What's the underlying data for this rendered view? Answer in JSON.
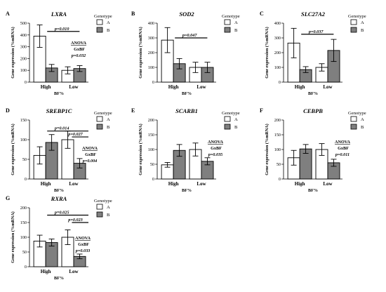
{
  "chart_data": [
    {
      "panel": "A",
      "type": "bar",
      "title": "LXRA",
      "ylabel": "Gene expression (%mRNA)",
      "xlabel": "BF%",
      "ylim": [
        0,
        500
      ],
      "yticks": [
        0,
        100,
        200,
        300,
        400,
        500
      ],
      "categories": [
        "High",
        "Low"
      ],
      "legend_title": "Genotype",
      "series": [
        {
          "name": "A",
          "values": [
            390,
            100
          ],
          "errors": [
            95,
            30
          ]
        },
        {
          "name": "B",
          "values": [
            120,
            115
          ],
          "errors": [
            30,
            25
          ]
        }
      ],
      "annotations": [
        {
          "text": "p=0.010",
          "kind": "sig-line"
        },
        {
          "text": "ANOVA",
          "kind": "stat"
        },
        {
          "text": "GxBF",
          "kind": "stat"
        },
        {
          "text": "p=0.032",
          "kind": "stat"
        }
      ]
    },
    {
      "panel": "B",
      "type": "bar",
      "title": "SOD2",
      "ylabel": "Gene expression (%mRNA)",
      "xlabel": "BF%",
      "ylim": [
        0,
        400
      ],
      "yticks": [
        0,
        100,
        200,
        300,
        400
      ],
      "categories": [
        "High",
        "Low"
      ],
      "legend_title": "Genotype",
      "series": [
        {
          "name": "A",
          "values": [
            285,
            100
          ],
          "errors": [
            85,
            35
          ]
        },
        {
          "name": "B",
          "values": [
            125,
            100
          ],
          "errors": [
            35,
            35
          ]
        }
      ],
      "annotations": [
        {
          "text": "p=0.047",
          "kind": "sig-line"
        }
      ]
    },
    {
      "panel": "C",
      "type": "bar",
      "title": "SLC27A2",
      "ylabel": "Gene expression (%mRNA)",
      "xlabel": "BF%",
      "ylim": [
        0,
        400
      ],
      "yticks": [
        0,
        100,
        200,
        300,
        400
      ],
      "categories": [
        "High",
        "Low"
      ],
      "legend_title": "Genotype",
      "series": [
        {
          "name": "A",
          "values": [
            265,
            100
          ],
          "errors": [
            100,
            25
          ]
        },
        {
          "name": "B",
          "values": [
            85,
            215
          ],
          "errors": [
            20,
            75
          ]
        }
      ],
      "annotations": [
        {
          "text": "p=0.037",
          "kind": "sig-line"
        }
      ]
    },
    {
      "panel": "D",
      "type": "bar",
      "title": "SREBP1C",
      "ylabel": "Gene expression (%mRNA)",
      "xlabel": "BF%",
      "ylim": [
        0,
        150
      ],
      "yticks": [
        0,
        50,
        100,
        150
      ],
      "categories": [
        "High",
        "Low"
      ],
      "legend_title": "Genotype",
      "series": [
        {
          "name": "A",
          "values": [
            60,
            100
          ],
          "errors": [
            22,
            22
          ]
        },
        {
          "name": "B",
          "values": [
            93,
            40
          ],
          "errors": [
            20,
            12
          ]
        }
      ],
      "annotations": [
        {
          "text": "p=0.014",
          "kind": "sig-line"
        },
        {
          "text": "p=0.027",
          "kind": "sig-line"
        },
        {
          "text": "ANOVA",
          "kind": "stat"
        },
        {
          "text": "GxBF",
          "kind": "stat"
        },
        {
          "text": "p=0.004",
          "kind": "stat"
        }
      ]
    },
    {
      "panel": "E",
      "type": "bar",
      "title": "SCARB1",
      "ylabel": "Gene expression (%mRNA)",
      "xlabel": "BF%",
      "ylim": [
        0,
        200
      ],
      "yticks": [
        0,
        50,
        100,
        150,
        200
      ],
      "categories": [
        "High",
        "Low"
      ],
      "legend_title": "Genotype",
      "series": [
        {
          "name": "A",
          "values": [
            48,
            100
          ],
          "errors": [
            8,
            22
          ]
        },
        {
          "name": "B",
          "values": [
            97,
            60
          ],
          "errors": [
            20,
            12
          ]
        }
      ],
      "annotations": [
        {
          "text": "ANOVA",
          "kind": "stat"
        },
        {
          "text": "GxBF",
          "kind": "stat"
        },
        {
          "text": "p=0.035",
          "kind": "stat"
        }
      ]
    },
    {
      "panel": "F",
      "type": "bar",
      "title": "CEBPB",
      "ylabel": "Gene expression (%mRNA)",
      "xlabel": "BF%",
      "ylim": [
        0,
        200
      ],
      "yticks": [
        0,
        50,
        100,
        150,
        200
      ],
      "categories": [
        "High",
        "Low"
      ],
      "legend_title": "Genotype",
      "series": [
        {
          "name": "A",
          "values": [
            72,
            100
          ],
          "errors": [
            25,
            20
          ]
        },
        {
          "name": "B",
          "values": [
            102,
            55
          ],
          "errors": [
            15,
            12
          ]
        }
      ],
      "annotations": [
        {
          "text": "ANOVA",
          "kind": "stat"
        },
        {
          "text": "GxBF",
          "kind": "stat"
        },
        {
          "text": "p=0.011",
          "kind": "stat"
        }
      ]
    },
    {
      "panel": "G",
      "type": "bar",
      "title": "RXRA",
      "ylabel": "Gene expression (%mRNA)",
      "xlabel": "BF%",
      "ylim": [
        0,
        200
      ],
      "yticks": [
        0,
        50,
        100,
        150,
        200
      ],
      "categories": [
        "High",
        "Low"
      ],
      "legend_title": "Genotype",
      "series": [
        {
          "name": "A",
          "values": [
            87,
            100
          ],
          "errors": [
            20,
            25
          ]
        },
        {
          "name": "B",
          "values": [
            82,
            35
          ],
          "errors": [
            12,
            8
          ]
        }
      ],
      "annotations": [
        {
          "text": "p=0.025",
          "kind": "sig-line"
        },
        {
          "text": "p=0.023",
          "kind": "sig-line"
        },
        {
          "text": "ANOVA",
          "kind": "stat"
        },
        {
          "text": "GxBF",
          "kind": "stat"
        },
        {
          "text": "p=0.033",
          "kind": "stat"
        }
      ]
    }
  ],
  "colors": {
    "A": "#ffffff",
    "B": "#7f7f7f",
    "stroke": "#000000"
  }
}
